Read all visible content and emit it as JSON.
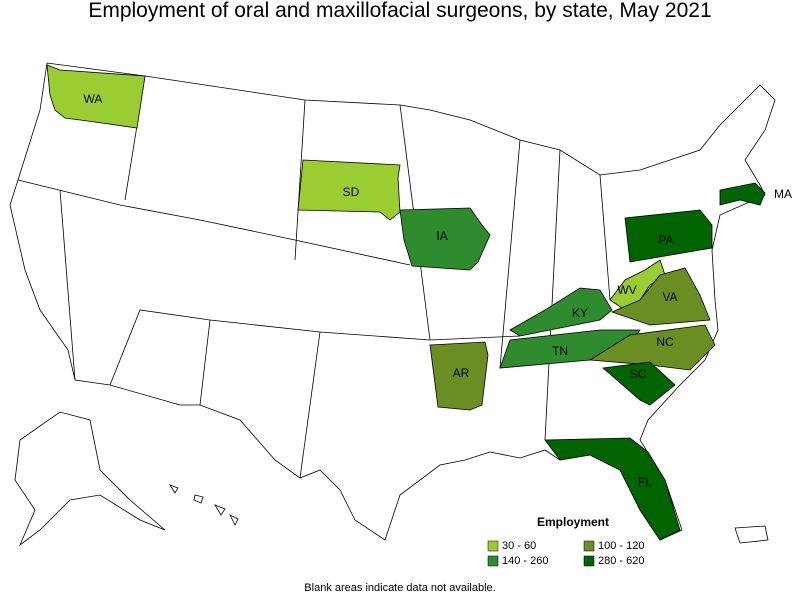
{
  "title": "Employment of oral and maxillofacial surgeons, by state, May 2021",
  "legend": {
    "title": "Employment",
    "items": [
      {
        "label": "30 - 60",
        "color": "#9acd32"
      },
      {
        "label": "100 - 120",
        "color": "#6b8e23"
      },
      {
        "label": "140 - 260",
        "color": "#2e8b2e"
      },
      {
        "label": "280 - 620",
        "color": "#006400"
      }
    ]
  },
  "states": [
    {
      "label": "WA",
      "range": "30 - 60"
    },
    {
      "label": "SD",
      "range": "30 - 60"
    },
    {
      "label": "WV",
      "range": "30 - 60"
    },
    {
      "label": "IA",
      "range": "140 - 260"
    },
    {
      "label": "KY",
      "range": "140 - 260"
    },
    {
      "label": "TN",
      "range": "140 - 260"
    },
    {
      "label": "AR",
      "range": "100 - 120"
    },
    {
      "label": "VA",
      "range": "100 - 120"
    },
    {
      "label": "NC",
      "range": "100 - 120"
    },
    {
      "label": "PA",
      "range": "280 - 620"
    },
    {
      "label": "MA",
      "range": "280 - 620"
    },
    {
      "label": "SC",
      "range": "280 - 620"
    },
    {
      "label": "FL",
      "range": "280 - 620"
    }
  ],
  "note": "Blank areas indicate data not available."
}
